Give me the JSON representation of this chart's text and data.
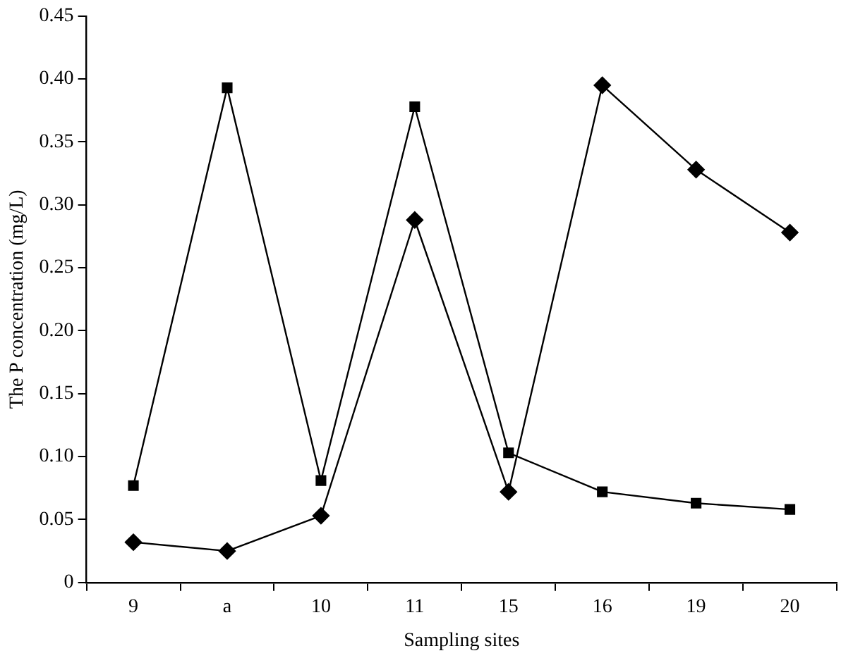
{
  "chart_data": {
    "type": "line",
    "xlabel": "Sampling sites",
    "ylabel": "The P concentration (mg/L)",
    "categories": [
      "9",
      "a",
      "10",
      "11",
      "15",
      "16",
      "19",
      "20"
    ],
    "series": [
      {
        "color": "#000000",
        "marker": "square",
        "values": [
          0.077,
          0.393,
          0.081,
          0.378,
          0.103,
          0.072,
          0.063,
          0.058
        ]
      },
      {
        "color": "#000000",
        "marker": "diamond",
        "values": [
          0.032,
          0.025,
          0.053,
          0.288,
          0.072,
          0.395,
          0.328,
          0.278
        ]
      }
    ],
    "ylim": [
      0,
      0.45
    ],
    "yticks": [
      0,
      {
        "value": 0.05,
        "label": "0.05"
      },
      {
        "value": 0.1,
        "label": "0.10"
      },
      {
        "value": 0.15,
        "label": "0.15"
      },
      {
        "value": 0.2,
        "label": "0.20"
      },
      {
        "value": 0.25,
        "label": "0.25"
      },
      {
        "value": 0.3,
        "label": "0.30"
      },
      {
        "value": 0.35,
        "label": "0.35"
      },
      {
        "value": 0.4,
        "label": "0.40"
      },
      {
        "value": 0.45,
        "label": "0.45"
      }
    ],
    "grid": false,
    "legend": false,
    "line_style": "solid"
  }
}
